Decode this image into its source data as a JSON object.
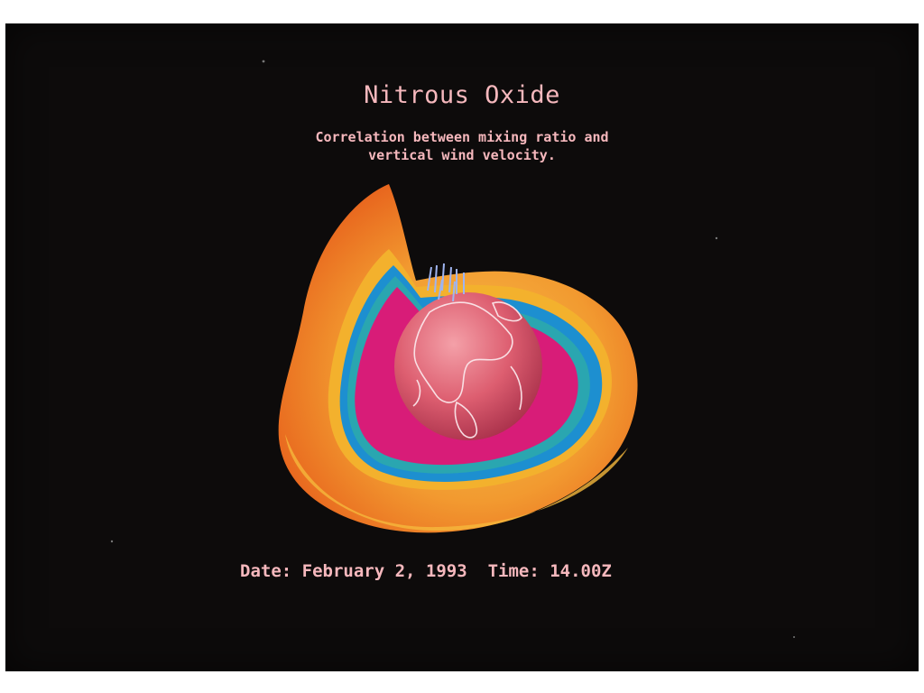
{
  "title": "Nitrous Oxide",
  "subtitle_line1": "Correlation between mixing ratio and",
  "subtitle_line2": "vertical wind velocity.",
  "date_label": "Date:",
  "date_value": "February 2, 1993",
  "time_label": "Time:",
  "time_value": "14.00Z",
  "colors": {
    "text": "#f6b8bd",
    "background": "#0d0b0b",
    "outer_shell": "#f07a2a",
    "yellow_band": "#f3b12d",
    "blue_band": "#1d8fd0",
    "teal_band": "#2aa6b0",
    "inner_magenta": "#d81c78",
    "globe": "#d9566a"
  },
  "icon": "earth-globe"
}
